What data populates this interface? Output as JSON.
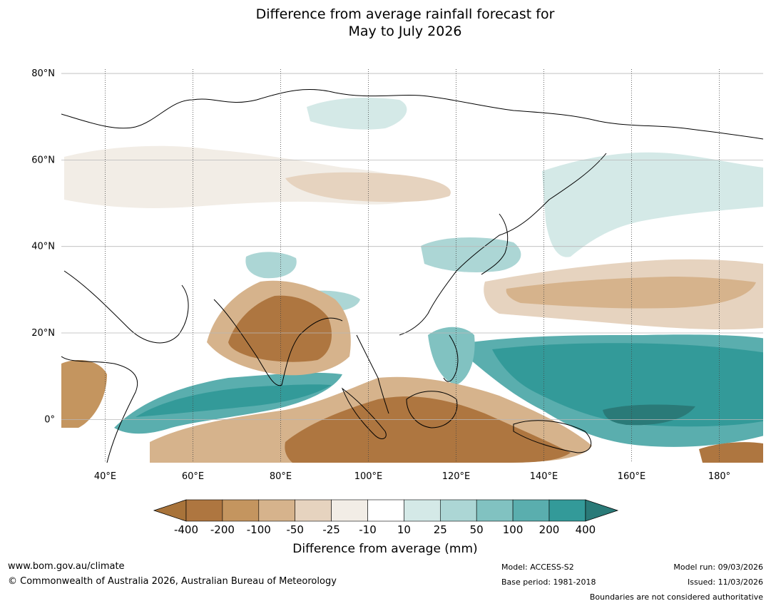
{
  "title": {
    "line1": "Difference from average rainfall forecast for",
    "line2": "May to July 2026"
  },
  "map": {
    "lat_labels": [
      "80°N",
      "60°N",
      "40°N",
      "20°N",
      "0°"
    ],
    "lon_labels": [
      "40°E",
      "60°E",
      "80°E",
      "100°E",
      "120°E",
      "140°E",
      "160°E",
      "180°"
    ],
    "extent": {
      "lon": [
        30,
        190
      ],
      "lat": [
        -10,
        81
      ]
    }
  },
  "colorbar": {
    "title": "Difference from average (mm)",
    "labels": [
      "-400",
      "-200",
      "-100",
      "-50",
      "-25",
      "-10",
      "10",
      "25",
      "50",
      "100",
      "200",
      "400"
    ],
    "colors": [
      "#a8733a",
      "#ae7640",
      "#c4955f",
      "#d6b38c",
      "#e6d3bf",
      "#f2ede6",
      "#ffffff",
      "#d4e9e7",
      "#acd6d5",
      "#81c2c1",
      "#5aaeae",
      "#339a99",
      "#2a7a78"
    ]
  },
  "footer": {
    "website": "www.bom.gov.au/climate",
    "copyright": "© Commonwealth of Australia 2026, Australian Bureau of Meteorology",
    "model": "Model: ACCESS-S2",
    "base_period": "Base period: 1981-2018",
    "model_run": "Model run: 09/03/2026",
    "issued": "Issued: 11/03/2026",
    "disclaimer": "Boundaries are not considered authoritative"
  }
}
